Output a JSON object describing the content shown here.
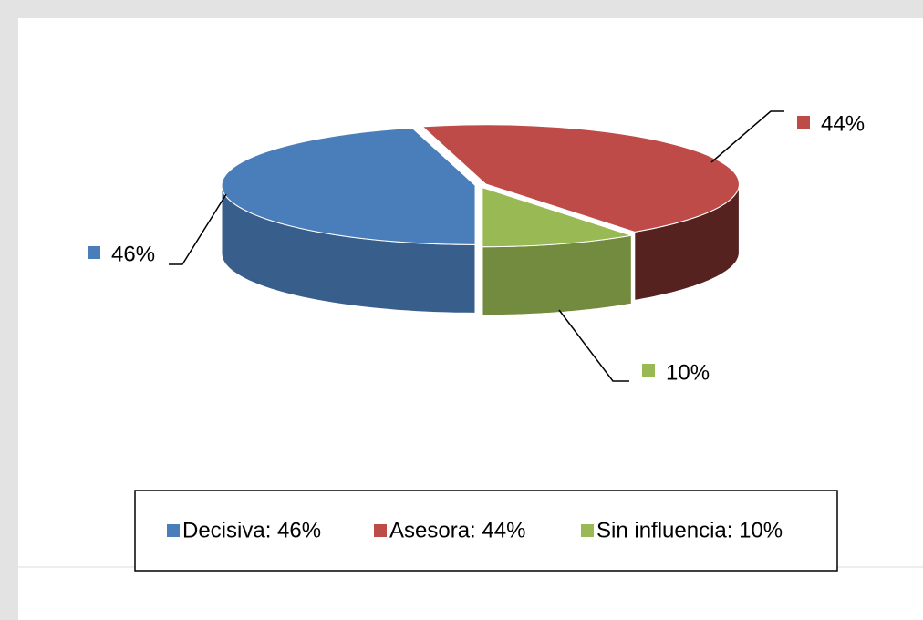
{
  "chart_data": {
    "type": "pie",
    "categories": [
      "Decisiva: 46%",
      "Asesora: 44%",
      "Sin influencia: 10%"
    ],
    "values": [
      46,
      44,
      10
    ],
    "value_labels": [
      "46%",
      "44%",
      "10%"
    ],
    "colors": [
      "#4a7ebb",
      "#be4b48",
      "#98b954"
    ],
    "legend": "bottom"
  }
}
